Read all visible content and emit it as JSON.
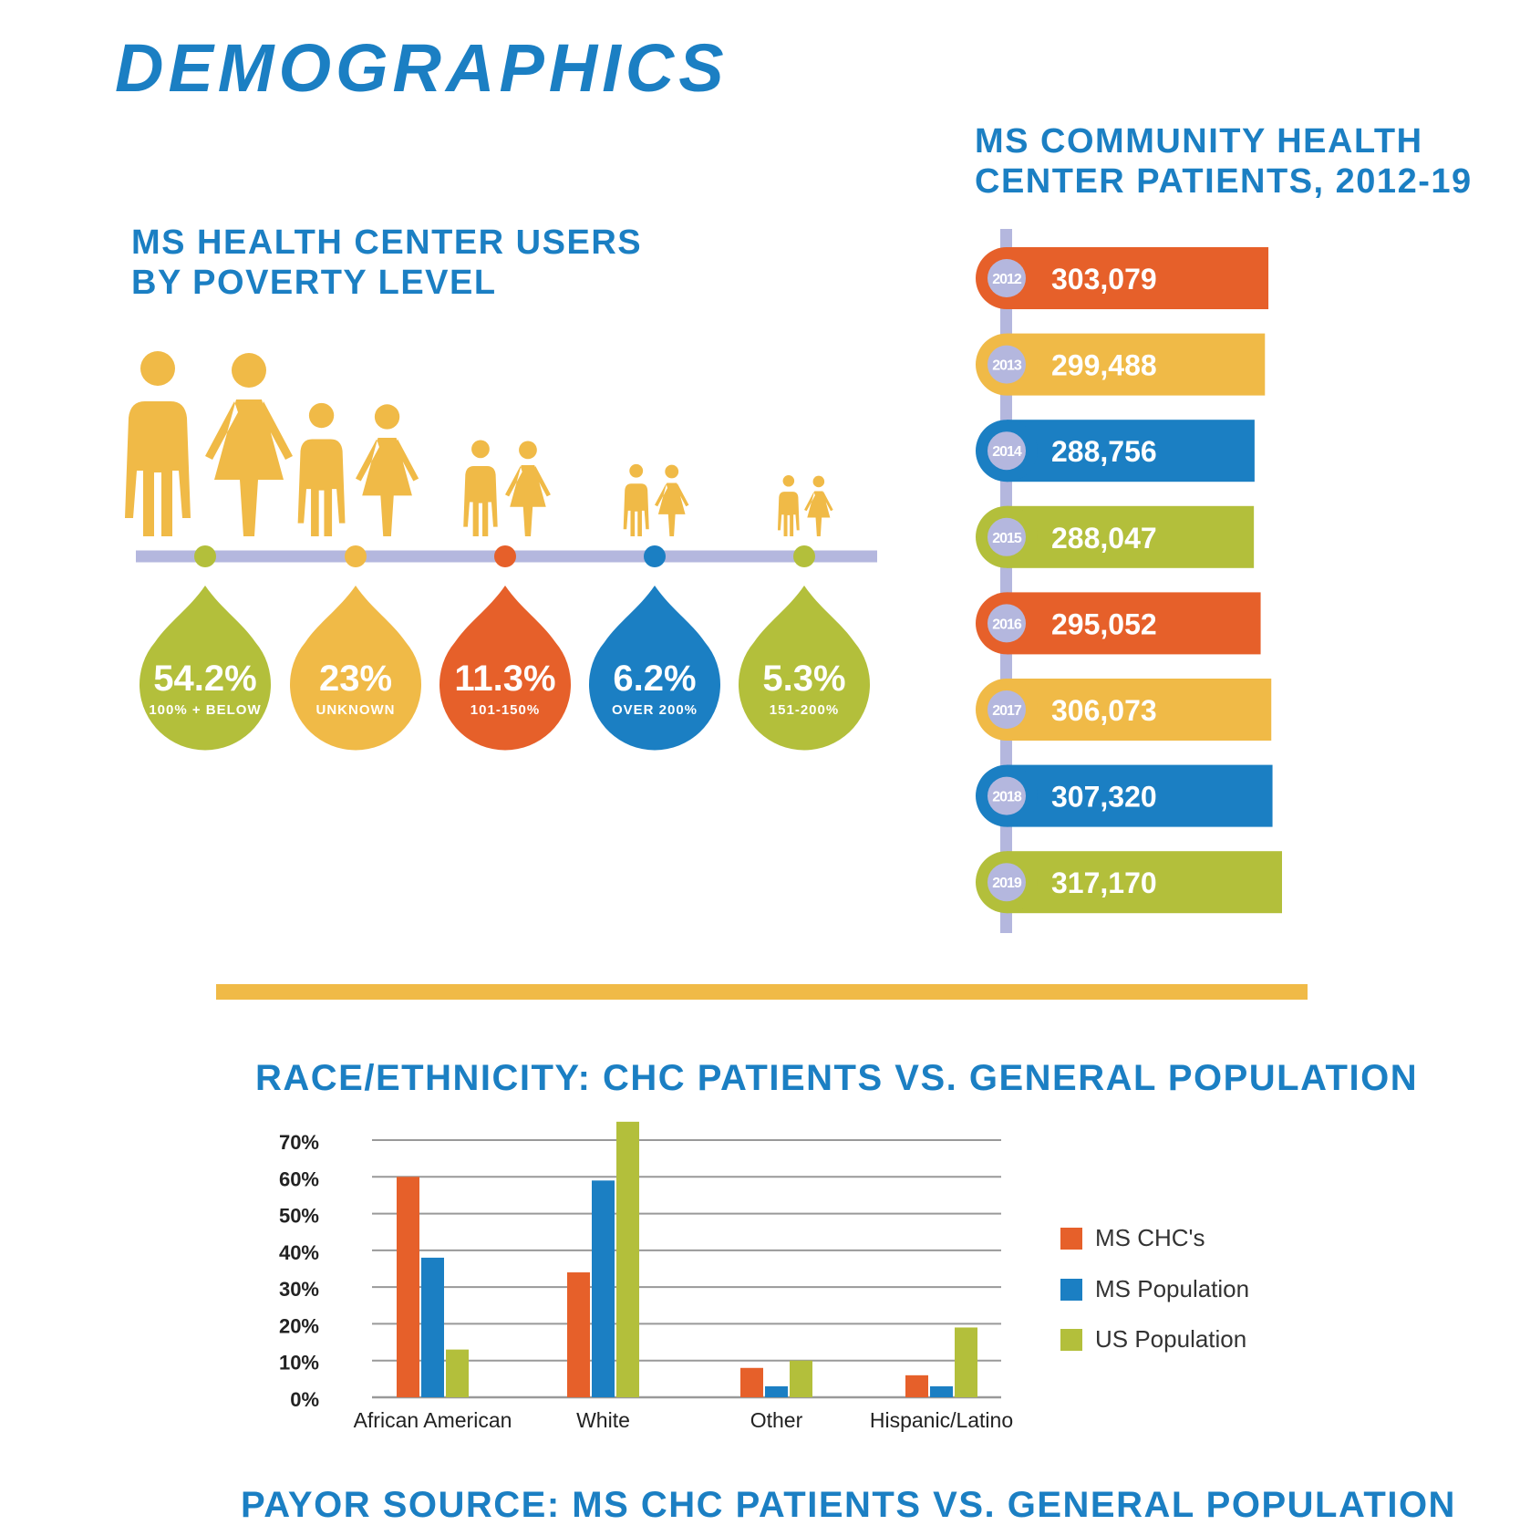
{
  "page": {
    "title": "DEMOGRAPHICS",
    "colors": {
      "blue": "#1b7fc3",
      "orange": "#e6602a",
      "yellow": "#f0ba47",
      "green": "#b3bf3b",
      "lavender": "#b4b7de"
    }
  },
  "poverty": {
    "title_line1": "MS HEALTH CENTER USERS",
    "title_line2": "BY POVERTY LEVEL",
    "groups": [
      {
        "value": "54.2%",
        "label": "100% + BELOW",
        "color": "#b3bf3b",
        "icon": "man-woman-icon",
        "scale": 1.0
      },
      {
        "value": "23%",
        "label": "UNKNOWN",
        "color": "#f0ba47",
        "icon": "man-woman-icon",
        "scale": 0.72
      },
      {
        "value": "11.3%",
        "label": "101-150%",
        "color": "#e6602a",
        "icon": "man-woman-icon",
        "scale": 0.52
      },
      {
        "value": "6.2%",
        "label": "OVER 200%",
        "color": "#1b7fc3",
        "icon": "man-woman-icon",
        "scale": 0.39
      },
      {
        "value": "5.3%",
        "label": "151-200%",
        "color": "#b3bf3b",
        "icon": "man-woman-icon",
        "scale": 0.33
      }
    ]
  },
  "patients": {
    "title_line1": "MS COMMUNITY HEALTH",
    "title_line2": "CENTER PATIENTS, 2012-19"
  },
  "race": {
    "title": "RACE/ETHNICITY: CHC PATIENTS VS. GENERAL POPULATION"
  },
  "payor": {
    "title": "PAYOR SOURCE: MS CHC PATIENTS VS. GENERAL POPULATION"
  },
  "chart_data": [
    {
      "type": "bar",
      "orientation": "horizontal",
      "title": "MS COMMUNITY HEALTH CENTER PATIENTS, 2012-19",
      "categories": [
        "2012",
        "2013",
        "2014",
        "2015",
        "2016",
        "2017",
        "2018",
        "2019"
      ],
      "values": [
        303079,
        299488,
        288756,
        288047,
        295052,
        306073,
        307320,
        317170
      ],
      "value_labels": [
        "303,079",
        "299,488",
        "288,756",
        "288,047",
        "295,052",
        "306,073",
        "307,320",
        "317,170"
      ],
      "bar_colors": [
        "#e6602a",
        "#f0ba47",
        "#1b7fc3",
        "#b3bf3b",
        "#e6602a",
        "#f0ba47",
        "#1b7fc3",
        "#b3bf3b"
      ]
    },
    {
      "type": "bar",
      "title": "RACE/ETHNICITY: CHC PATIENTS VS. GENERAL POPULATION",
      "categories": [
        "African American",
        "White",
        "Other",
        "Hispanic/Latino"
      ],
      "series": [
        {
          "name": "MS CHC's",
          "color": "#e6602a",
          "values": [
            60,
            34,
            8,
            6
          ]
        },
        {
          "name": "MS Population",
          "color": "#1b7fc3",
          "values": [
            38,
            59,
            3,
            3
          ]
        },
        {
          "name": "US Population",
          "color": "#b3bf3b",
          "values": [
            13,
            75,
            10,
            19
          ]
        }
      ],
      "ylim": [
        0,
        70
      ],
      "yticks": [
        "0%",
        "10%",
        "20%",
        "30%",
        "40%",
        "50%",
        "60%",
        "70%"
      ],
      "grid": true,
      "legend": "right"
    }
  ]
}
